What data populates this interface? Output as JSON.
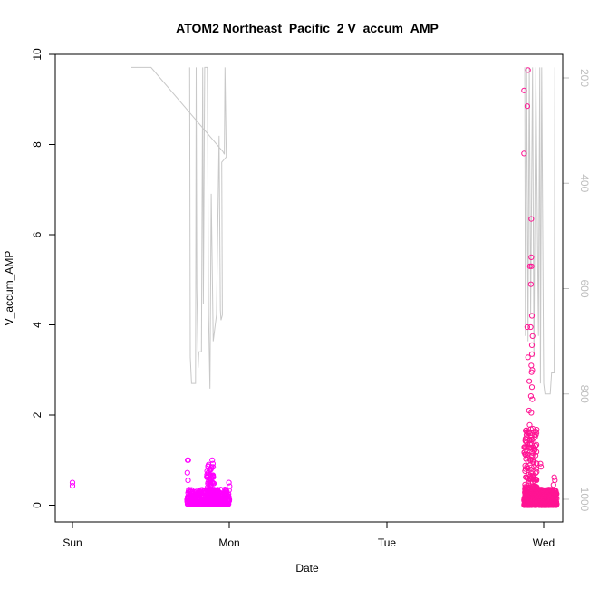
{
  "chart_data": {
    "type": "scatter",
    "title": "ATOM2 Northeast_Pacific_2 V_accum_AMP",
    "xlabel": "Date",
    "ylabel": "V_accum_AMP",
    "x_tick_labels": [
      "Sun",
      "Mon",
      "Tue",
      "Wed"
    ],
    "xlim": [
      "Sun 00:00",
      "Wed 02:00"
    ],
    "ylim": [
      0,
      10
    ],
    "y_ticks": [
      0,
      2,
      4,
      6,
      8,
      10
    ],
    "y2_ticks": [
      200,
      400,
      600,
      800,
      1000
    ],
    "y2_direction": "reversed",
    "y2lim": [
      1000,
      180
    ],
    "grid": false,
    "colors": {
      "points_primary": "#ff1493",
      "points_secondary": "#ff00ff",
      "pressure_line": "#c8c8c8",
      "axis": "#000000",
      "right_axis": "#bebebe"
    },
    "series": [
      {
        "role": "scatter",
        "color": "#ff00ff",
        "points_x_hours": [
          0.0,
          0.0
        ],
        "points_y": [
          0.5,
          0.43
        ],
        "clusters": [
          {
            "x_start_hours": 17.5,
            "x_end_hours": 24.0,
            "y_low": 0.02,
            "y_high": 0.35,
            "count": 420
          },
          {
            "x_start_hours": 20.5,
            "x_end_hours": 21.5,
            "y_low": 0.1,
            "y_high": 0.9,
            "count": 60
          }
        ],
        "outliers": [
          [
            17.6,
            1.0
          ],
          [
            17.7,
            1.0
          ],
          [
            17.55,
            0.72
          ],
          [
            17.65,
            0.55
          ],
          [
            20.8,
            0.9
          ],
          [
            20.9,
            0.78
          ],
          [
            21.0,
            0.65
          ],
          [
            21.2,
            0.6
          ],
          [
            21.35,
            1.0
          ],
          [
            21.45,
            0.92
          ],
          [
            21.5,
            0.62
          ],
          [
            21.6,
            0.48
          ],
          [
            23.9,
            0.5
          ],
          [
            24.0,
            0.42
          ]
        ]
      },
      {
        "role": "scatter",
        "color": "#ff1493",
        "clusters": [
          {
            "x_start_hours": 69.0,
            "x_end_hours": 74.0,
            "y_low": 0.0,
            "y_high": 0.35,
            "count": 600
          },
          {
            "x_start_hours": 69.0,
            "x_end_hours": 71.0,
            "y_low": 0.35,
            "y_high": 1.7,
            "count": 120
          }
        ],
        "outliers": [
          [
            69.0,
            9.2
          ],
          [
            69.0,
            7.8
          ],
          [
            69.6,
            9.65
          ],
          [
            69.5,
            8.85
          ],
          [
            70.1,
            6.35
          ],
          [
            69.9,
            5.3
          ],
          [
            70.1,
            5.5
          ],
          [
            70.15,
            5.3
          ],
          [
            70.05,
            4.9
          ],
          [
            70.2,
            4.2
          ],
          [
            69.5,
            3.95
          ],
          [
            70.0,
            3.95
          ],
          [
            70.3,
            3.75
          ],
          [
            70.2,
            3.55
          ],
          [
            69.6,
            3.28
          ],
          [
            70.2,
            3.35
          ],
          [
            70.1,
            3.1
          ],
          [
            70.25,
            3.0
          ],
          [
            70.15,
            2.95
          ],
          [
            69.8,
            2.75
          ],
          [
            70.2,
            2.62
          ],
          [
            70.05,
            2.42
          ],
          [
            70.25,
            2.35
          ],
          [
            70.1,
            2.05
          ],
          [
            69.75,
            2.1
          ],
          [
            69.85,
            1.78
          ],
          [
            69.7,
            1.6
          ],
          [
            70.1,
            1.55
          ],
          [
            69.4,
            1.5
          ],
          [
            69.9,
            1.45
          ],
          [
            69.3,
            1.22
          ],
          [
            69.6,
            1.12
          ],
          [
            70.4,
            1.15
          ],
          [
            70.5,
            0.95
          ],
          [
            71.5,
            0.92
          ],
          [
            71.6,
            0.85
          ],
          [
            70.9,
            0.55
          ],
          [
            73.6,
            0.62
          ],
          [
            73.7,
            0.55
          ],
          [
            73.5,
            0.45
          ]
        ]
      },
      {
        "role": "pressure_line",
        "axis": "right",
        "color": "#c8c8c8",
        "points": [
          [
            9.0,
            180
          ],
          [
            12.0,
            180
          ],
          [
            23.0,
            340
          ],
          [
            23.2,
            345
          ],
          [
            23.3,
            180
          ],
          [
            23.5,
            350
          ],
          [
            22.8,
            360
          ],
          [
            22.9,
            650
          ],
          [
            22.7,
            660
          ],
          [
            22.6,
            640
          ],
          [
            22.4,
            310
          ],
          [
            22.0,
            650
          ],
          [
            21.5,
            700
          ],
          [
            21.2,
            420
          ],
          [
            21.0,
            790
          ],
          [
            20.8,
            650
          ],
          [
            20.6,
            180
          ],
          [
            20.2,
            180
          ],
          [
            20.0,
            630
          ],
          [
            19.9,
            180
          ],
          [
            19.7,
            720
          ],
          [
            19.3,
            720
          ],
          [
            19.2,
            750
          ],
          [
            19.0,
            600
          ],
          [
            18.9,
            180
          ],
          [
            18.8,
            780
          ],
          [
            18.2,
            780
          ],
          [
            18.0,
            730
          ],
          [
            17.9,
            180
          ]
        ],
        "segments_after_gap": [
          [
            69.1,
            180
          ],
          [
            69.2,
            690
          ],
          [
            69.4,
            180
          ],
          [
            69.6,
            700
          ],
          [
            69.8,
            180
          ],
          [
            70.0,
            650
          ],
          [
            70.3,
            180
          ],
          [
            70.5,
            730
          ],
          [
            70.8,
            180
          ],
          [
            71.2,
            690
          ],
          [
            71.4,
            180
          ],
          [
            71.5,
            780
          ],
          [
            71.7,
            180
          ],
          [
            72.0,
            780
          ],
          [
            72.2,
            800
          ],
          [
            72.6,
            800
          ],
          [
            73.0,
            800
          ],
          [
            73.2,
            760
          ],
          [
            73.6,
            760
          ],
          [
            73.7,
            180
          ]
        ]
      }
    ]
  }
}
